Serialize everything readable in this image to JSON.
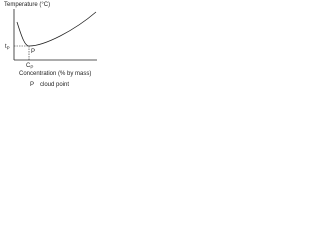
{
  "axes": {
    "y_label": "Temperature (°C)",
    "x_label": "Concentration (% by mass)"
  },
  "marks": {
    "y_mark": {
      "base": "t",
      "sub": "P"
    },
    "x_mark": {
      "base": "C",
      "sub": "P"
    },
    "point": "P"
  },
  "legend": {
    "symbol": "P",
    "text": "cloud point"
  }
}
